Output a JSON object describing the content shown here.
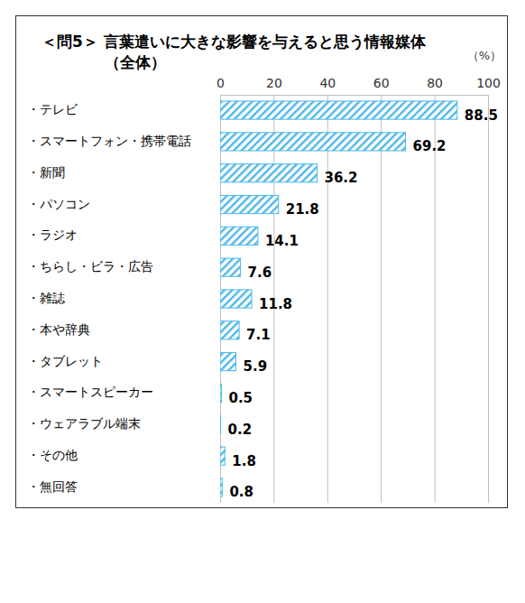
{
  "chart_data": {
    "type": "bar",
    "orientation": "horizontal",
    "title": "＜問5＞ 言葉遣いに大きな影響を与えると思う情報媒体",
    "subtitle": "（全体）",
    "xlabel": "（%）",
    "categories": [
      "・テレビ",
      "・スマートフォン・携帯電話",
      "・新聞",
      "・パソコン",
      "・ラジオ",
      "・ちらし・ビラ・広告",
      "・雑誌",
      "・本や辞典",
      "・タブレット",
      "・スマートスピーカー",
      "・ウェアラブル端末",
      "・その他",
      "・無回答"
    ],
    "values": [
      88.5,
      69.2,
      36.2,
      21.8,
      14.1,
      7.6,
      11.8,
      7.1,
      5.9,
      0.5,
      0.2,
      1.8,
      0.8
    ],
    "color": "#4cb8ea",
    "xlim": [
      0,
      100
    ],
    "xticks": [
      0,
      20,
      40,
      60,
      80,
      100
    ],
    "grid": true,
    "data_labels": true
  }
}
